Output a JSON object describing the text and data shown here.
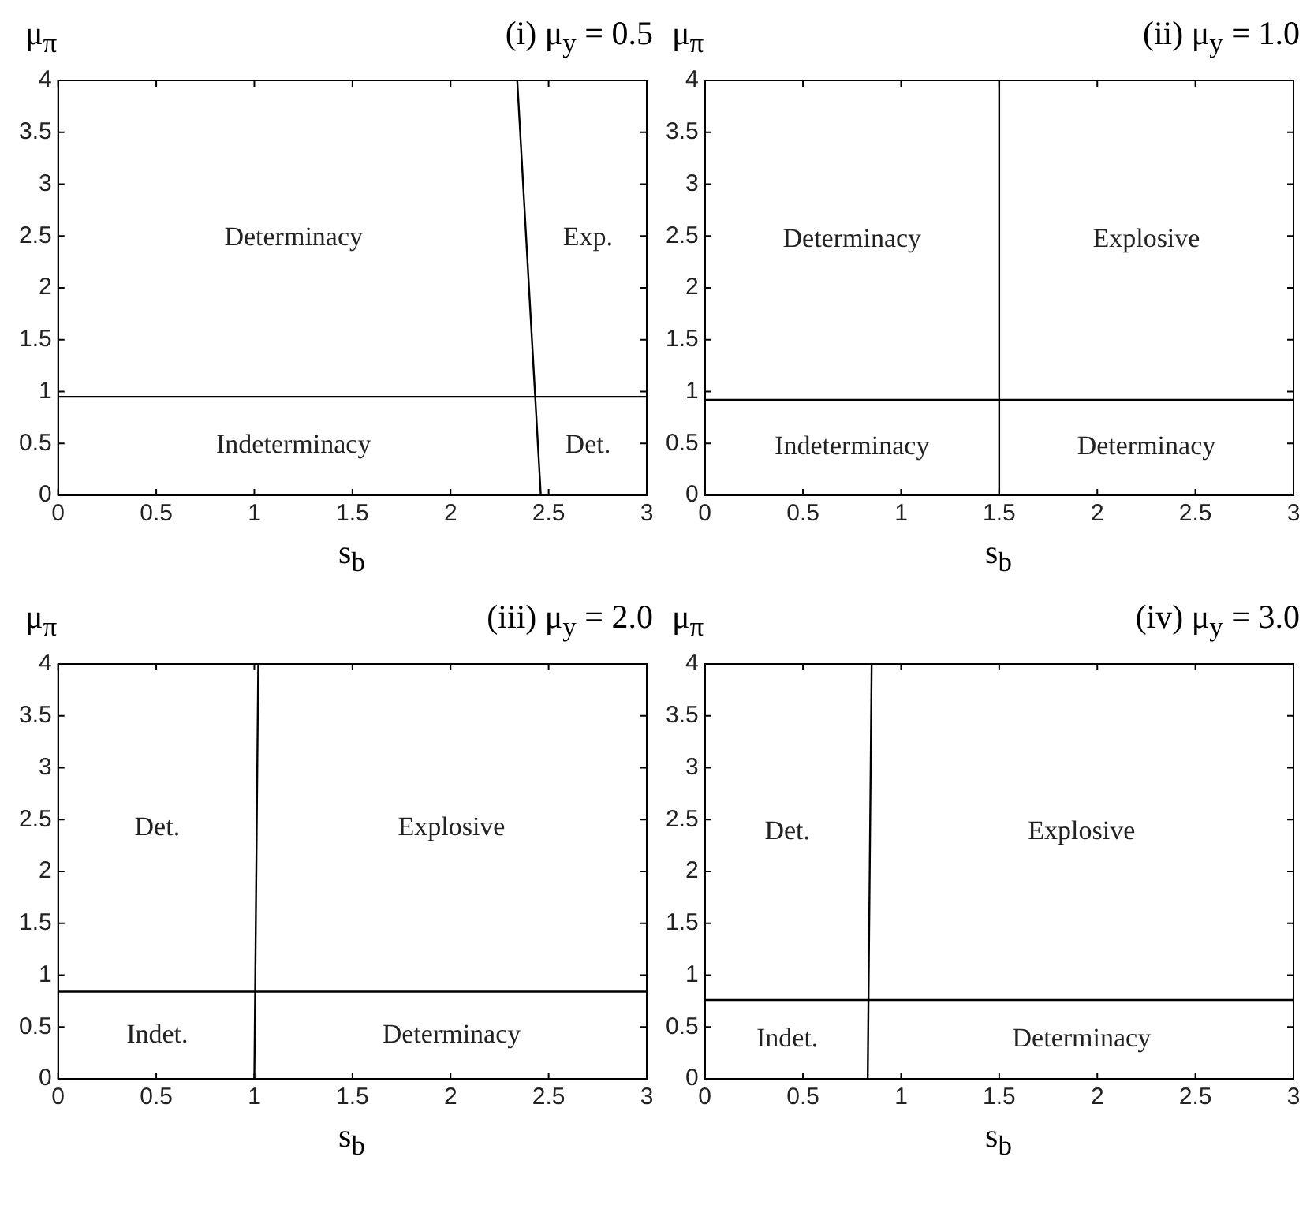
{
  "chart_data": [
    {
      "type": "line",
      "title": "(i) μ$_{y}$ = 0.5",
      "xlabel": "s$_{b}$",
      "ylabel": "μ$_{π}$",
      "xlim": [
        0,
        3
      ],
      "ylim": [
        0,
        4
      ],
      "xticks": [
        0,
        0.5,
        1,
        1.5,
        2,
        2.5,
        3
      ],
      "yticks": [
        0,
        0.5,
        1,
        1.5,
        2,
        2.5,
        3,
        3.5,
        4
      ],
      "grid": false,
      "legend": false,
      "marker": "none",
      "line_style": "solid",
      "series": [
        {
          "color": "#000000",
          "x": [
            0,
            3
          ],
          "values": [
            0.95,
            0.95
          ]
        },
        {
          "color": "#000000",
          "x": [
            2.46,
            2.34
          ],
          "values": [
            0,
            4
          ]
        }
      ],
      "annotations": [
        "Determinacy",
        "Exp.",
        "Indeterminacy",
        "Det."
      ]
    },
    {
      "type": "line",
      "title": "(ii) μ$_{y}$ = 1.0",
      "xlabel": "s$_{b}$",
      "ylabel": "μ$_{π}$",
      "xlim": [
        0,
        3
      ],
      "ylim": [
        0,
        4
      ],
      "xticks": [
        0,
        0.5,
        1,
        1.5,
        2,
        2.5,
        3
      ],
      "yticks": [
        0,
        0.5,
        1,
        1.5,
        2,
        2.5,
        3,
        3.5,
        4
      ],
      "grid": false,
      "legend": false,
      "marker": "none",
      "line_style": "solid",
      "series": [
        {
          "color": "#000000",
          "x": [
            0,
            3
          ],
          "values": [
            0.92,
            0.92
          ]
        },
        {
          "color": "#000000",
          "x": [
            1.5,
            1.5
          ],
          "values": [
            0,
            4
          ]
        }
      ],
      "annotations": [
        "Determinacy",
        "Explosive",
        "Indeterminacy",
        "Determinacy"
      ]
    },
    {
      "type": "line",
      "title": "(iii) μ$_{y}$ = 2.0",
      "xlabel": "s$_{b}$",
      "ylabel": "μ$_{π}$",
      "xlim": [
        0,
        3
      ],
      "ylim": [
        0,
        4
      ],
      "xticks": [
        0,
        0.5,
        1,
        1.5,
        2,
        2.5,
        3
      ],
      "yticks": [
        0,
        0.5,
        1,
        1.5,
        2,
        2.5,
        3,
        3.5,
        4
      ],
      "grid": false,
      "legend": false,
      "marker": "none",
      "line_style": "solid",
      "series": [
        {
          "color": "#000000",
          "x": [
            0,
            3
          ],
          "values": [
            0.84,
            0.84
          ]
        },
        {
          "color": "#000000",
          "x": [
            1.0,
            1.02
          ],
          "values": [
            0,
            4
          ]
        }
      ],
      "annotations": [
        "Det.",
        "Explosive",
        "Indet.",
        "Determinacy"
      ]
    },
    {
      "type": "line",
      "title": "(iv) μ$_{y}$ = 3.0",
      "xlabel": "s$_{b}$",
      "ylabel": "μ$_{π}$",
      "xlim": [
        0,
        3
      ],
      "ylim": [
        0,
        4
      ],
      "xticks": [
        0,
        0.5,
        1,
        1.5,
        2,
        2.5,
        3
      ],
      "yticks": [
        0,
        0.5,
        1,
        1.5,
        2,
        2.5,
        3,
        3.5,
        4
      ],
      "grid": false,
      "legend": false,
      "marker": "none",
      "line_style": "solid",
      "series": [
        {
          "color": "#000000",
          "x": [
            0,
            3
          ],
          "values": [
            0.76,
            0.76
          ]
        },
        {
          "color": "#000000",
          "x": [
            0.83,
            0.85
          ],
          "values": [
            0,
            4
          ]
        }
      ],
      "annotations": [
        "Det.",
        "Explosive",
        "Indet.",
        "Determinacy"
      ]
    }
  ]
}
